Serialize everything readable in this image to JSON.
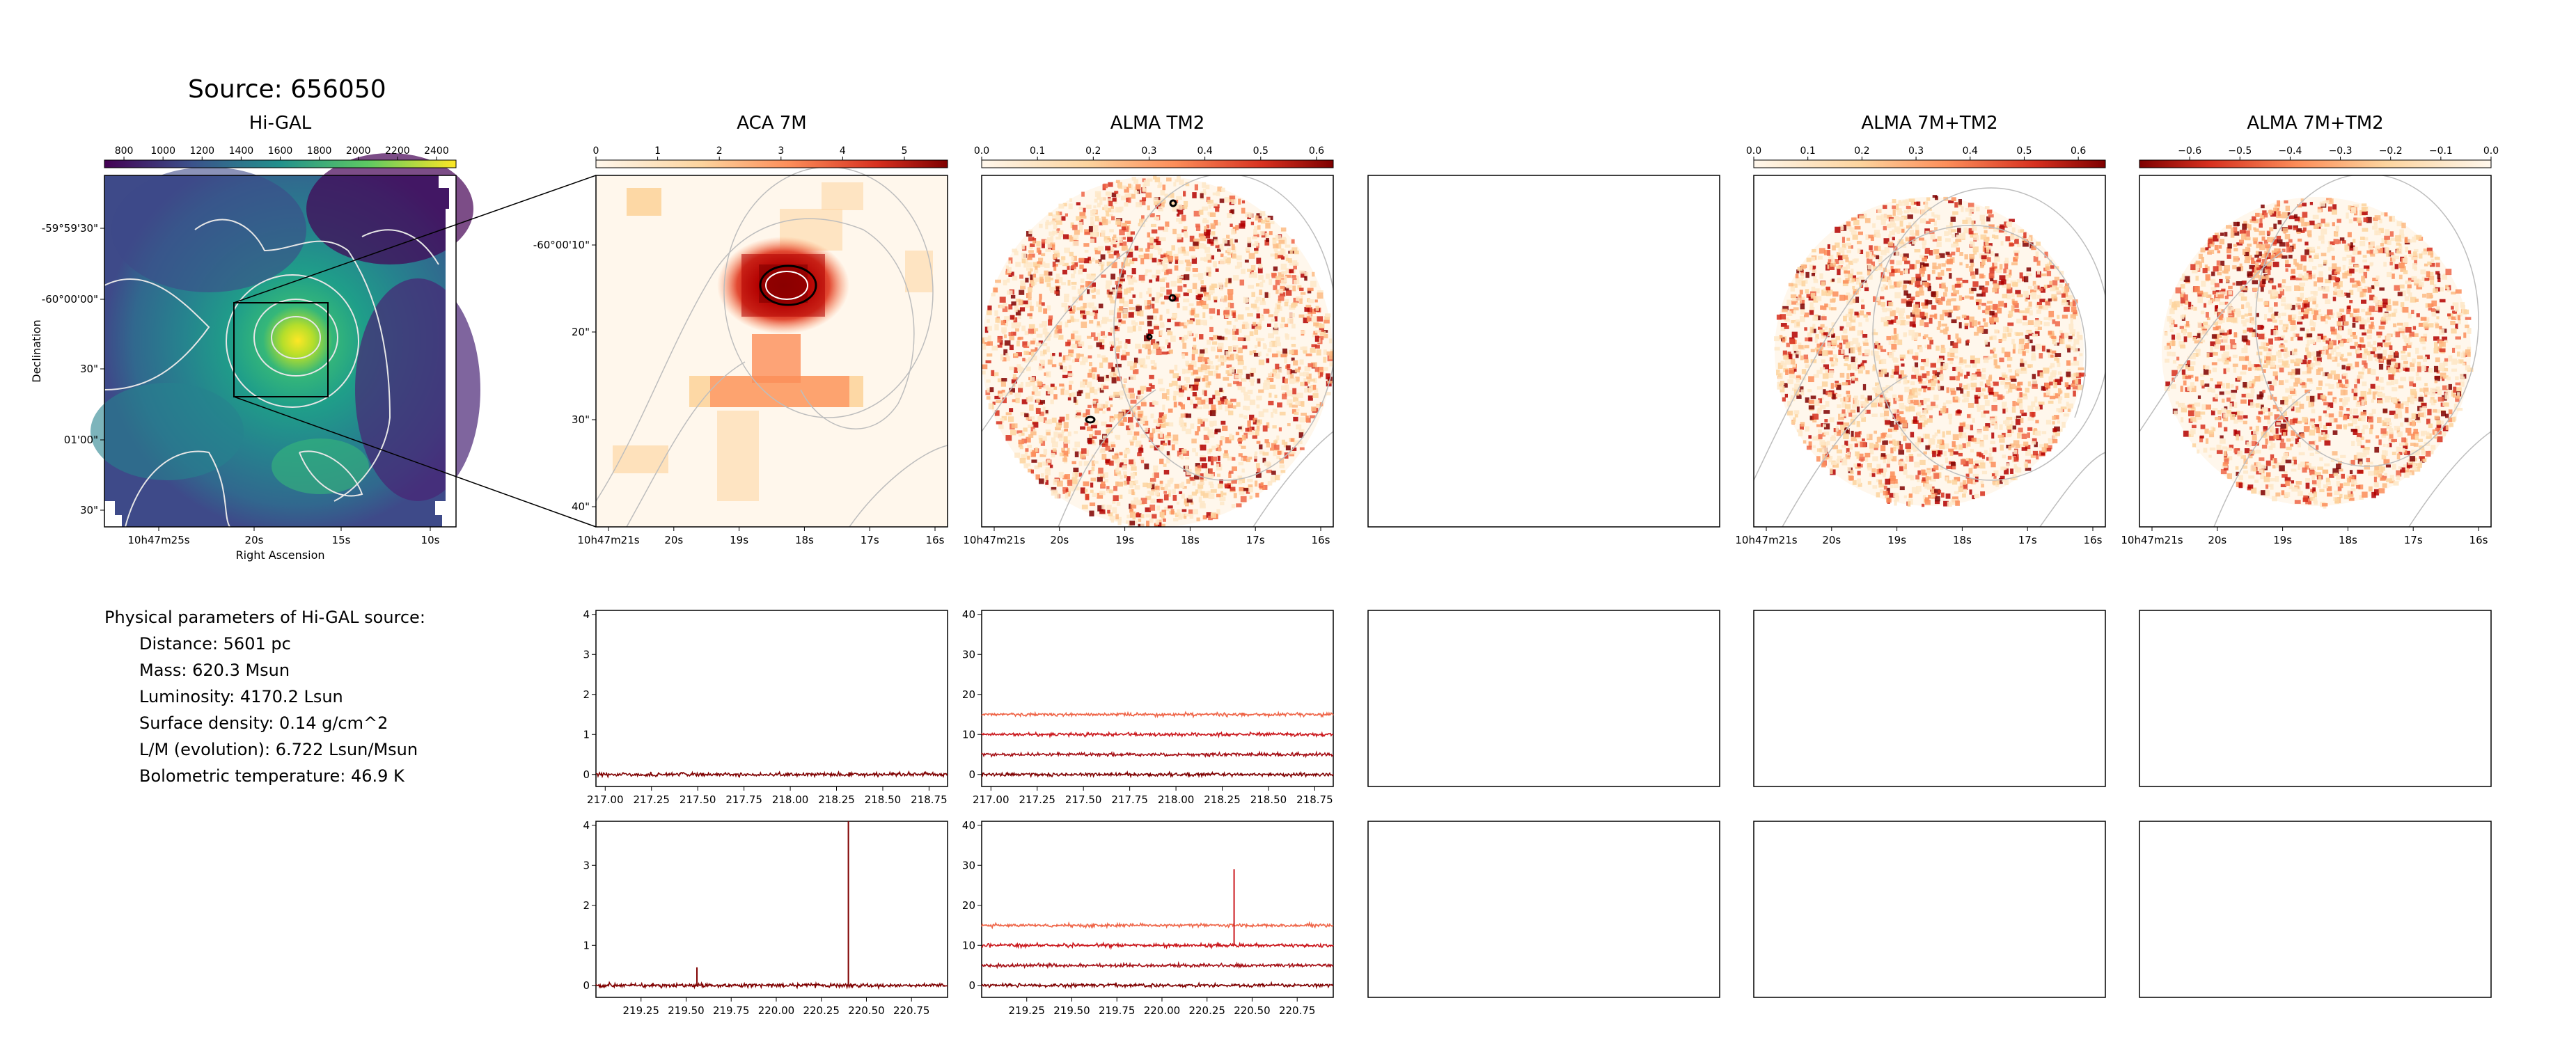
{
  "source_title": "Source: 656050",
  "panel_titles": {
    "higal": "Hi-GAL",
    "aca": "ACA 7M",
    "tm2": "ALMA TM2",
    "combo1": "ALMA 7M+TM2",
    "combo2": "ALMA 7M+TM2"
  },
  "params": {
    "heading": "Physical parameters of Hi-GAL source:",
    "distance": "Distance: 5601 pc",
    "mass": "Mass: 620.3 Msun",
    "luminosity": "Luminosity: 4170.2 Lsun",
    "surface_density": "Surface density: 0.14 g/cm^2",
    "lm": "L/M (evolution): 6.722 Lsun/Msun",
    "tbol": "Bolometric temperature: 46.9 K"
  },
  "colors": {
    "viridis_dark": "#440154",
    "viridis_mid": "#21918c",
    "viridis_light": "#fde725",
    "orrd_low": "#fff7ec",
    "orrd_high": "#7f0000",
    "spec_dark": "#7f0000",
    "spec_mid": "#cb181d",
    "spec_light": "#ef6548"
  },
  "chart_data": [
    {
      "type": "heatmap",
      "name": "Hi-GAL",
      "colorbar_ticks": [
        "800",
        "1000",
        "1200",
        "1400",
        "1600",
        "1800",
        "2000",
        "2200",
        "2400"
      ],
      "colorbar_range": [
        700,
        2500
      ],
      "ylabel": "Declination",
      "xlabel": "Right Ascension",
      "y_ticks": [
        "-59°59'30\"",
        "-60°00'00\"",
        "30\"",
        "01'00\"",
        "30\""
      ],
      "x_ticks": [
        "10h47m25s",
        "20s",
        "15s",
        "10s"
      ],
      "colormap": "viridis"
    },
    {
      "type": "heatmap",
      "name": "ACA 7M",
      "colorbar_ticks": [
        "0",
        "1",
        "2",
        "3",
        "4",
        "5"
      ],
      "colorbar_range": [
        0,
        5.7
      ],
      "y_ticks": [
        "-60°00'10\"",
        "20\"",
        "30\"",
        "40\""
      ],
      "x_ticks": [
        "10h47m21s",
        "20s",
        "19s",
        "18s",
        "17s",
        "16s"
      ],
      "colormap": "OrRd"
    },
    {
      "type": "heatmap",
      "name": "ALMA TM2",
      "colorbar_ticks": [
        "0.0",
        "0.1",
        "0.2",
        "0.3",
        "0.4",
        "0.5",
        "0.6"
      ],
      "colorbar_range": [
        0,
        0.63
      ],
      "x_ticks": [
        "10h47m21s",
        "20s",
        "19s",
        "18s",
        "17s",
        "16s"
      ],
      "colormap": "OrRd"
    },
    {
      "type": "heatmap",
      "name": "ALMA 7M+TM2",
      "colorbar_ticks": [
        "0.0",
        "0.1",
        "0.2",
        "0.3",
        "0.4",
        "0.5",
        "0.6"
      ],
      "colorbar_range": [
        0,
        0.65
      ],
      "x_ticks": [
        "10h47m21s",
        "20s",
        "19s",
        "18s",
        "17s",
        "16s"
      ],
      "colormap": "OrRd"
    },
    {
      "type": "heatmap",
      "name": "ALMA 7M+TM2",
      "colorbar_ticks": [
        "−0.6",
        "−0.5",
        "−0.4",
        "−0.3",
        "−0.2",
        "−0.1",
        "0.0"
      ],
      "colorbar_range": [
        -0.7,
        0.0
      ],
      "x_ticks": [
        "10h47m21s",
        "20s",
        "19s",
        "18s",
        "17s",
        "16s"
      ],
      "colormap": "OrRd_r"
    },
    {
      "type": "line",
      "name": "ACA spectrum lower sideband",
      "xlim": [
        216.95,
        218.85
      ],
      "ylim": [
        -0.3,
        4.1
      ],
      "x_ticks": [
        "217.00",
        "217.25",
        "217.50",
        "217.75",
        "218.00",
        "218.25",
        "218.50",
        "218.75"
      ],
      "y_ticks": [
        "0",
        "1",
        "2",
        "3",
        "4"
      ],
      "series": [
        {
          "offset": 0,
          "noise": 0.04
        }
      ]
    },
    {
      "type": "line",
      "name": "TM2 spectrum lower sideband",
      "xlim": [
        216.95,
        218.85
      ],
      "ylim": [
        -3,
        41
      ],
      "x_ticks": [
        "217.00",
        "217.25",
        "217.50",
        "217.75",
        "218.00",
        "218.25",
        "218.50",
        "218.75"
      ],
      "y_ticks": [
        "0",
        "10",
        "20",
        "30",
        "40"
      ],
      "series": [
        {
          "offset": 0,
          "noise": 0.35
        },
        {
          "offset": 5,
          "noise": 0.35
        },
        {
          "offset": 10,
          "noise": 0.35
        },
        {
          "offset": 15,
          "noise": 0.35
        }
      ]
    },
    {
      "type": "line",
      "name": "ACA spectrum upper sideband",
      "xlim": [
        219.0,
        220.95
      ],
      "ylim": [
        -0.3,
        4.1
      ],
      "x_ticks": [
        "219.25",
        "219.50",
        "219.75",
        "220.00",
        "220.25",
        "220.50",
        "220.75"
      ],
      "y_ticks": [
        "0",
        "1",
        "2",
        "3",
        "4"
      ],
      "peaks": [
        {
          "x": 219.56,
          "height": 0.45
        },
        {
          "x": 220.4,
          "height": 4.1
        }
      ],
      "series": [
        {
          "offset": 0,
          "noise": 0.04
        }
      ]
    },
    {
      "type": "line",
      "name": "TM2 spectrum upper sideband",
      "xlim": [
        219.0,
        220.95
      ],
      "ylim": [
        -3,
        41
      ],
      "x_ticks": [
        "219.25",
        "219.50",
        "219.75",
        "220.00",
        "220.25",
        "220.50",
        "220.75"
      ],
      "y_ticks": [
        "0",
        "10",
        "20",
        "30",
        "40"
      ],
      "peaks": [
        {
          "x": 220.4,
          "height": 19
        }
      ],
      "series": [
        {
          "offset": 0,
          "noise": 0.35
        },
        {
          "offset": 5,
          "noise": 0.35
        },
        {
          "offset": 10,
          "noise": 0.35
        },
        {
          "offset": 15,
          "noise": 0.35
        }
      ]
    }
  ]
}
